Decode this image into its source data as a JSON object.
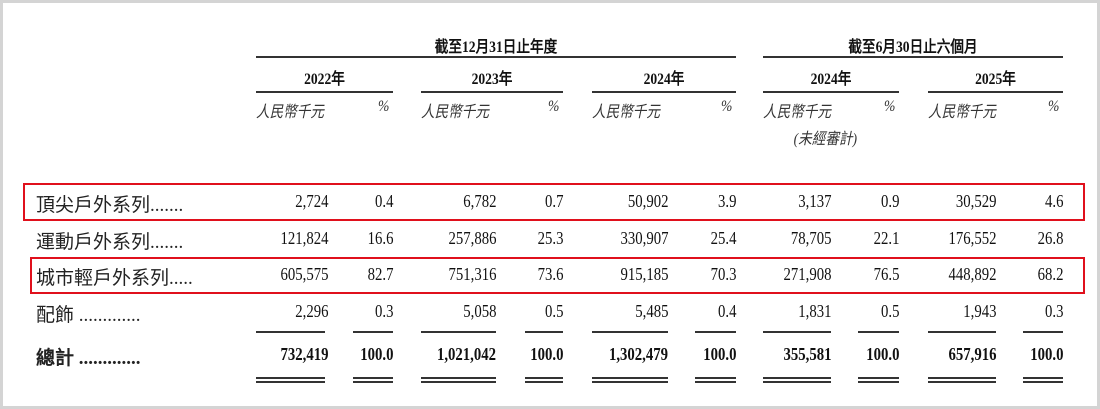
{
  "header": {
    "group1": "截至12月31日止年度",
    "group2": "截至6月30日止六個月",
    "years": [
      "2022年",
      "2023年",
      "2024年",
      "2024年",
      "2025年"
    ],
    "unit_amount": "人民幣千元",
    "unit_pct": "%",
    "unaudited": "(未經審計)"
  },
  "rows": [
    {
      "label": "頂尖戶外系列.......",
      "values": [
        "2,724",
        "0.4",
        "6,782",
        "0.7",
        "50,902",
        "3.9",
        "3,137",
        "0.9",
        "30,529",
        "4.6"
      ],
      "highlighted": true
    },
    {
      "label": "運動戶外系列.......",
      "values": [
        "121,824",
        "16.6",
        "257,886",
        "25.3",
        "330,907",
        "25.4",
        "78,705",
        "22.1",
        "176,552",
        "26.8"
      ],
      "highlighted": false
    },
    {
      "label": "城市輕戶外系列.....",
      "values": [
        "605,575",
        "82.7",
        "751,316",
        "73.6",
        "915,185",
        "70.3",
        "271,908",
        "76.5",
        "448,892",
        "68.2"
      ],
      "highlighted": true
    },
    {
      "label": "配飾 .............",
      "values": [
        "2,296",
        "0.3",
        "5,058",
        "0.5",
        "5,485",
        "0.4",
        "1,831",
        "0.5",
        "1,943",
        "0.3"
      ],
      "highlighted": false
    },
    {
      "label": "總計 .............",
      "values": [
        "732,419",
        "100.0",
        "1,021,042",
        "100.0",
        "1,302,479",
        "100.0",
        "355,581",
        "100.0",
        "657,916",
        "100.0"
      ],
      "highlighted": false,
      "bold": true
    }
  ],
  "colors": {
    "highlight_border": "#e0101c"
  }
}
